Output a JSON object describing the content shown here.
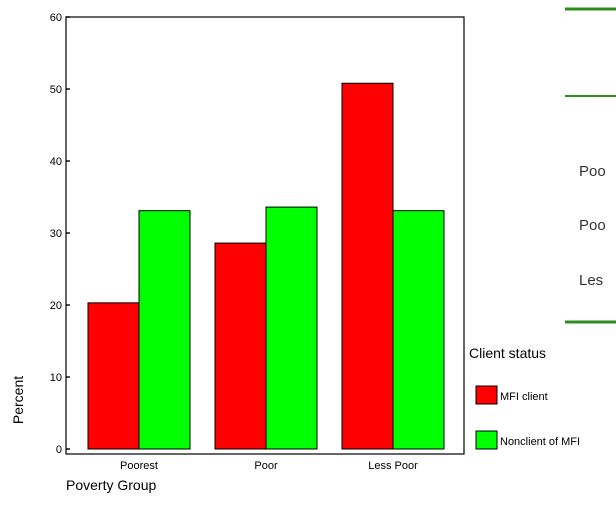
{
  "chart_data": {
    "type": "bar",
    "title": "",
    "xlabel": "Poverty Group",
    "ylabel": "Percent",
    "categories": [
      "Poorest",
      "Poor",
      "Less Poor"
    ],
    "series": [
      {
        "name": "MFI client",
        "values": [
          20.3,
          28.6,
          50.8
        ],
        "color": "#ff0000"
      },
      {
        "name": "Nonclient of MFI",
        "values": [
          33.1,
          33.6,
          33.1
        ],
        "color": "#00ff00"
      }
    ],
    "ylim": [
      0,
      60
    ],
    "yticks": [
      "0",
      "10",
      "20",
      "30",
      "40",
      "50",
      "60"
    ],
    "grid": false,
    "legend": {
      "title": "Client status",
      "placement": "right"
    }
  },
  "side_table": {
    "rule_color": "#2e8b1e",
    "rows": [
      "Poo",
      "Poo",
      "Les"
    ]
  }
}
